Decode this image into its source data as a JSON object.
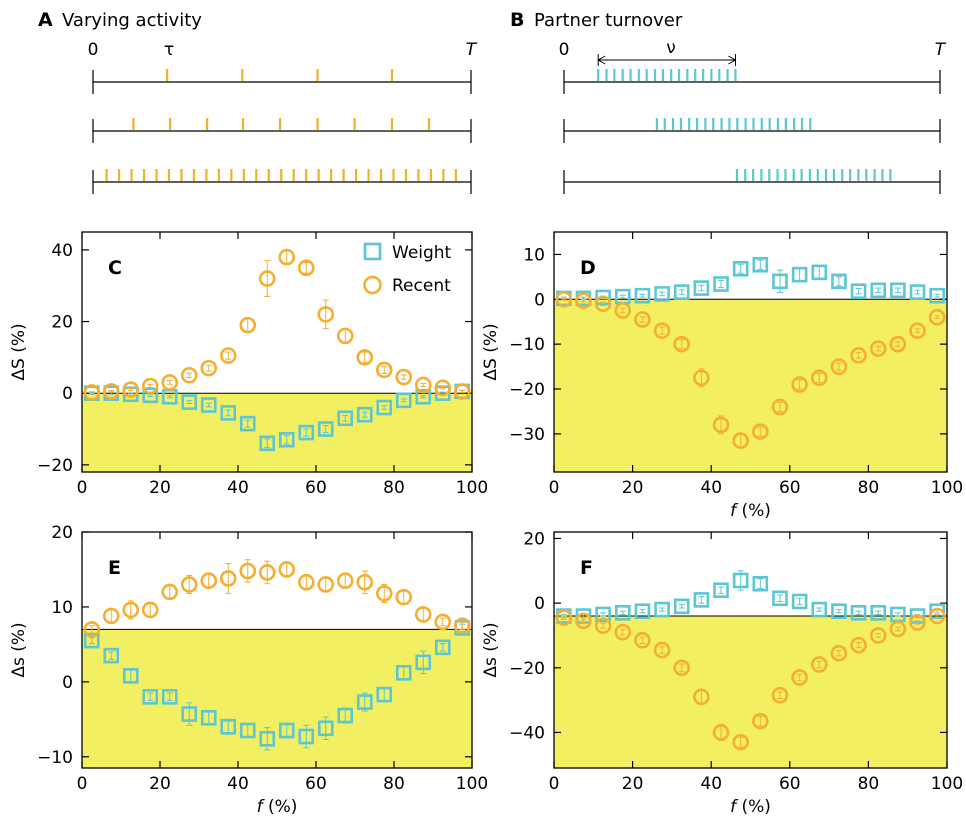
{
  "colors": {
    "orange": "#f5ae2d",
    "cyan": "#5cc7d2",
    "fill": "#f3ef63",
    "line": "#000000"
  },
  "timelines": {
    "A": {
      "letter": "A",
      "title": "Varying activity",
      "label_start": "0",
      "label_end": "T",
      "label_spacing": "τ",
      "rows": [
        {
          "ticks": [
            0.196,
            0.395,
            0.594,
            0.791
          ]
        },
        {
          "ticks": [
            0.107,
            0.204,
            0.302,
            0.397,
            0.495,
            0.594,
            0.692,
            0.791,
            0.889
          ]
        },
        {
          "ticks": [
            0.036,
            0.069,
            0.102,
            0.135,
            0.168,
            0.201,
            0.234,
            0.267,
            0.3,
            0.333,
            0.366,
            0.399,
            0.432,
            0.465,
            0.498,
            0.531,
            0.564,
            0.597,
            0.63,
            0.663,
            0.696,
            0.729,
            0.762,
            0.795,
            0.828,
            0.861,
            0.894,
            0.927,
            0.96
          ]
        }
      ]
    },
    "B": {
      "letter": "B",
      "title": "Partner turnover",
      "label_start": "0",
      "label_end": "T",
      "label_width": "ν",
      "rows": [
        {
          "ticks": [
            0.091,
            0.113,
            0.134,
            0.156,
            0.177,
            0.199,
            0.22,
            0.242,
            0.263,
            0.285,
            0.306,
            0.328,
            0.349,
            0.37,
            0.392,
            0.413,
            0.435,
            0.456
          ]
        },
        {
          "ticks": [
            0.247,
            0.268,
            0.29,
            0.311,
            0.333,
            0.354,
            0.376,
            0.397,
            0.419,
            0.44,
            0.461,
            0.483,
            0.504,
            0.526,
            0.547,
            0.569,
            0.59,
            0.612,
            0.633,
            0.655
          ]
        },
        {
          "ticks": [
            0.46,
            0.482,
            0.503,
            0.525,
            0.546,
            0.568,
            0.589,
            0.611,
            0.632,
            0.654,
            0.675,
            0.697,
            0.718,
            0.74,
            0.761,
            0.783,
            0.804,
            0.826,
            0.847,
            0.868
          ]
        }
      ]
    }
  },
  "legend": {
    "weight": "Weight",
    "recent": "Recent"
  },
  "chart_data": [
    {
      "type": "scatter",
      "panel": "C",
      "ylabel": "ΔS (%)",
      "xlabel": "",
      "xlim": [
        0,
        100
      ],
      "ylim": [
        -22,
        45
      ],
      "xticks": [
        0,
        20,
        40,
        60,
        80,
        100
      ],
      "yticks": [
        -20,
        0,
        20,
        40
      ],
      "ytick_labels": [
        "−20",
        "0",
        "20",
        "40"
      ],
      "baseline": 0,
      "series": [
        {
          "name": "Weight",
          "marker": "square",
          "x": [
            2.5,
            7.5,
            12.5,
            17.5,
            22.5,
            27.5,
            32.5,
            37.5,
            42.5,
            47.5,
            52.5,
            57.5,
            62.5,
            67.5,
            72.5,
            77.5,
            82.5,
            87.5,
            92.5,
            97.5
          ],
          "values": [
            0,
            0,
            -0.3,
            -0.6,
            -1,
            -2.5,
            -3.3,
            -5.5,
            -8.5,
            -14,
            -13,
            -11,
            -10,
            -7,
            -6,
            -4,
            -2,
            -1,
            0,
            0.5
          ],
          "errors": [
            0.3,
            0.3,
            0.3,
            0.3,
            0.3,
            0.4,
            0.5,
            0.8,
            1.0,
            1.2,
            1.2,
            1.0,
            1.0,
            0.8,
            0.7,
            0.5,
            0.4,
            0.3,
            0.3,
            0.3
          ]
        },
        {
          "name": "Recent",
          "marker": "circle",
          "x": [
            2.5,
            7.5,
            12.5,
            17.5,
            22.5,
            27.5,
            32.5,
            37.5,
            42.5,
            47.5,
            52.5,
            57.5,
            62.5,
            67.5,
            72.5,
            77.5,
            82.5,
            87.5,
            92.5,
            97.5
          ],
          "values": [
            0.2,
            0.5,
            1,
            2,
            3,
            5,
            7,
            10.5,
            19,
            32,
            38,
            35,
            22,
            16,
            10,
            6.5,
            4.5,
            2.3,
            1.5,
            0.5
          ],
          "errors": [
            0.2,
            0.2,
            0.3,
            0.4,
            0.5,
            0.6,
            0.8,
            1.0,
            2.0,
            5.0,
            1.8,
            1.5,
            4.0,
            2.0,
            1.5,
            1.0,
            0.6,
            0.4,
            0.3,
            0.3
          ]
        }
      ]
    },
    {
      "type": "scatter",
      "panel": "D",
      "ylabel": "ΔS (%)",
      "xlabel": "f (%)",
      "xlim": [
        0,
        100
      ],
      "ylim": [
        -38.5,
        15
      ],
      "xticks": [
        0,
        20,
        40,
        60,
        80,
        100
      ],
      "yticks": [
        -30,
        -20,
        -10,
        0,
        10
      ],
      "ytick_labels": [
        "−30",
        "−20",
        "−10",
        "0",
        "10"
      ],
      "baseline": 0,
      "series": [
        {
          "name": "Weight",
          "marker": "square",
          "x": [
            2.5,
            7.5,
            12.5,
            17.5,
            22.5,
            27.5,
            32.5,
            37.5,
            42.5,
            47.5,
            52.5,
            57.5,
            62.5,
            67.5,
            72.5,
            77.5,
            82.5,
            87.5,
            92.5,
            97.5
          ],
          "values": [
            0.2,
            0.2,
            0.4,
            0.6,
            0.8,
            1.2,
            1.6,
            2.5,
            3.4,
            6.8,
            7.7,
            4.0,
            5.5,
            6.0,
            4.0,
            1.8,
            2.0,
            2.0,
            1.6,
            0.8
          ],
          "errors": [
            0.3,
            0.3,
            0.3,
            0.3,
            0.3,
            0.4,
            0.5,
            0.6,
            0.8,
            1.0,
            1.0,
            2.5,
            1.5,
            1.5,
            1.0,
            0.6,
            0.5,
            0.5,
            0.4,
            0.3
          ]
        },
        {
          "name": "Recent",
          "marker": "circle",
          "x": [
            2.5,
            7.5,
            12.5,
            17.5,
            22.5,
            27.5,
            32.5,
            37.5,
            42.5,
            47.5,
            52.5,
            57.5,
            62.5,
            67.5,
            72.5,
            77.5,
            82.5,
            87.5,
            92.5,
            97.5
          ],
          "values": [
            0,
            -0.3,
            -1,
            -2.5,
            -4.5,
            -7,
            -10,
            -17.5,
            -28,
            -31.5,
            -29.5,
            -24,
            -19,
            -17.5,
            -15,
            -12.5,
            -11,
            -10,
            -7,
            -4
          ],
          "errors": [
            0.2,
            0.3,
            0.4,
            0.5,
            0.6,
            0.8,
            1.0,
            2.0,
            2.0,
            1.5,
            1.0,
            1.0,
            1.0,
            1.0,
            0.8,
            0.6,
            0.5,
            0.5,
            0.4,
            0.3
          ]
        }
      ]
    },
    {
      "type": "scatter",
      "panel": "E",
      "ylabel": "Δs (%)",
      "xlabel": "f (%)",
      "xlim": [
        0,
        100
      ],
      "ylim": [
        -11.5,
        20
      ],
      "xticks": [
        0,
        20,
        40,
        60,
        80,
        100
      ],
      "yticks": [
        -10,
        0,
        10,
        20
      ],
      "ytick_labels": [
        "−10",
        "0",
        "10",
        "20"
      ],
      "baseline": 7,
      "series": [
        {
          "name": "Weight",
          "marker": "square",
          "x": [
            2.5,
            7.5,
            12.5,
            17.5,
            22.5,
            27.5,
            32.5,
            37.5,
            42.5,
            47.5,
            52.5,
            57.5,
            62.5,
            67.5,
            72.5,
            77.5,
            82.5,
            87.5,
            92.5,
            97.5
          ],
          "values": [
            5.5,
            3.5,
            0.8,
            -2,
            -2,
            -4.3,
            -4.8,
            -6,
            -6.5,
            -7.6,
            -6.5,
            -7.3,
            -6.2,
            -4.5,
            -2.7,
            -1.7,
            1.2,
            2.6,
            4.6,
            7.2
          ],
          "errors": [
            0.4,
            0.5,
            0.8,
            0.5,
            0.5,
            1.5,
            0.8,
            1.0,
            0.8,
            1.5,
            1.0,
            1.5,
            1.5,
            1.0,
            1.2,
            0.8,
            0.8,
            1.5,
            0.5,
            0.5
          ]
        },
        {
          "name": "Recent",
          "marker": "circle",
          "x": [
            2.5,
            7.5,
            12.5,
            17.5,
            22.5,
            27.5,
            32.5,
            37.5,
            42.5,
            47.5,
            52.5,
            57.5,
            62.5,
            67.5,
            72.5,
            77.5,
            82.5,
            87.5,
            92.5,
            97.5
          ],
          "values": [
            7,
            8.8,
            9.6,
            9.6,
            12,
            13,
            13.5,
            13.8,
            14.8,
            14.6,
            15,
            13.3,
            13,
            13.5,
            13.3,
            11.8,
            11.3,
            9,
            8,
            7.5
          ],
          "errors": [
            0.5,
            0.8,
            1.2,
            1.0,
            0.8,
            1.2,
            1.0,
            2.0,
            1.5,
            1.5,
            1.0,
            1.0,
            1.0,
            1.0,
            1.5,
            1.2,
            0.8,
            1.0,
            0.5,
            0.5
          ]
        }
      ]
    },
    {
      "type": "scatter",
      "panel": "F",
      "ylabel": "Δs (%)",
      "xlabel": "f (%)",
      "xlim": [
        0,
        100
      ],
      "ylim": [
        -51,
        22
      ],
      "xticks": [
        0,
        20,
        40,
        60,
        80,
        100
      ],
      "yticks": [
        -40,
        -20,
        0,
        20
      ],
      "ytick_labels": [
        "−40",
        "−20",
        "0",
        "20"
      ],
      "baseline": -4,
      "series": [
        {
          "name": "Weight",
          "marker": "square",
          "x": [
            2.5,
            7.5,
            12.5,
            17.5,
            22.5,
            27.5,
            32.5,
            37.5,
            42.5,
            47.5,
            52.5,
            57.5,
            62.5,
            67.5,
            72.5,
            77.5,
            82.5,
            87.5,
            92.5,
            97.5
          ],
          "values": [
            -4,
            -4,
            -3.5,
            -3,
            -2.5,
            -2,
            -1,
            1,
            4,
            7,
            6,
            1.5,
            0.5,
            -2,
            -2.5,
            -3,
            -3,
            -3.5,
            -4,
            -2.5
          ],
          "errors": [
            0.5,
            0.5,
            0.5,
            0.5,
            0.5,
            0.5,
            0.5,
            1.0,
            1.0,
            3.0,
            1.5,
            1.0,
            1.0,
            0.5,
            0.5,
            0.5,
            0.5,
            0.5,
            0.5,
            0.5
          ]
        },
        {
          "name": "Recent",
          "marker": "circle",
          "x": [
            2.5,
            7.5,
            12.5,
            17.5,
            22.5,
            27.5,
            32.5,
            37.5,
            42.5,
            47.5,
            52.5,
            57.5,
            62.5,
            67.5,
            72.5,
            77.5,
            82.5,
            87.5,
            92.5,
            97.5
          ],
          "values": [
            -4.5,
            -5.5,
            -7,
            -9,
            -11.5,
            -14.5,
            -20,
            -29,
            -40,
            -43,
            -36.5,
            -28.5,
            -23,
            -19,
            -15.5,
            -13,
            -10,
            -8,
            -6,
            -4
          ],
          "errors": [
            0.5,
            0.5,
            0.8,
            0.8,
            1.0,
            1.0,
            1.2,
            2.0,
            2.5,
            1.5,
            1.5,
            1.0,
            1.0,
            1.0,
            0.8,
            0.8,
            0.6,
            0.6,
            0.5,
            0.5
          ]
        }
      ]
    }
  ]
}
